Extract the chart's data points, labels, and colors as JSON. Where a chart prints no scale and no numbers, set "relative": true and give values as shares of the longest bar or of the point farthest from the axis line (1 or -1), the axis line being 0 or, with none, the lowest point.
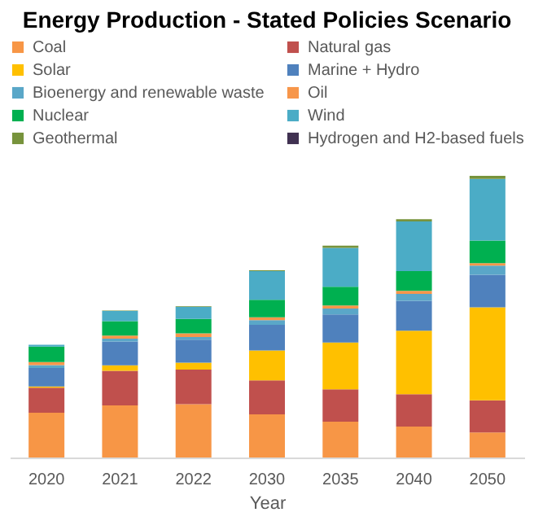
{
  "chart_data": {
    "type": "bar",
    "title": "Energy Production - Stated Policies Scenario",
    "xlabel": "Year",
    "relative": true,
    "stacked": true,
    "legend": "top",
    "grid": false,
    "categories": [
      "2020",
      "2021",
      "2022",
      "2030",
      "2035",
      "2040",
      "2050"
    ],
    "series": [
      {
        "name": "Coal",
        "color": "#f79646",
        "values": [
          0.159,
          0.185,
          0.189,
          0.153,
          0.127,
          0.11,
          0.089
        ]
      },
      {
        "name": "Natural gas",
        "color": "#c0504d",
        "values": [
          0.089,
          0.123,
          0.123,
          0.121,
          0.115,
          0.115,
          0.114
        ]
      },
      {
        "name": "Solar",
        "color": "#ffc000",
        "values": [
          0.004,
          0.019,
          0.025,
          0.106,
          0.166,
          0.225,
          0.33
        ]
      },
      {
        "name": "Marine + Hydro",
        "color": "#4f81bd",
        "values": [
          0.066,
          0.085,
          0.081,
          0.091,
          0.1,
          0.106,
          0.116
        ]
      },
      {
        "name": "Bioenergy and renewable waste",
        "color": "#5aa7c8",
        "values": [
          0.01,
          0.01,
          0.01,
          0.017,
          0.021,
          0.025,
          0.032
        ]
      },
      {
        "name": "Oil",
        "color": "#f7964a",
        "values": [
          0.011,
          0.011,
          0.013,
          0.01,
          0.011,
          0.011,
          0.009
        ]
      },
      {
        "name": "Nuclear",
        "color": "#00b050",
        "values": [
          0.055,
          0.051,
          0.051,
          0.062,
          0.066,
          0.07,
          0.08
        ]
      },
      {
        "name": "Wind",
        "color": "#4bacc6",
        "values": [
          0.006,
          0.036,
          0.043,
          0.102,
          0.138,
          0.176,
          0.219
        ]
      },
      {
        "name": "Geothermal",
        "color": "#77933c",
        "values": [
          null,
          0.002,
          0.002,
          0.003,
          0.008,
          0.008,
          0.011
        ]
      },
      {
        "name": "Hydrogen and H2-based fuels",
        "color": "#403151",
        "values": [
          0,
          0,
          0,
          0,
          0,
          0,
          0
        ]
      }
    ]
  }
}
